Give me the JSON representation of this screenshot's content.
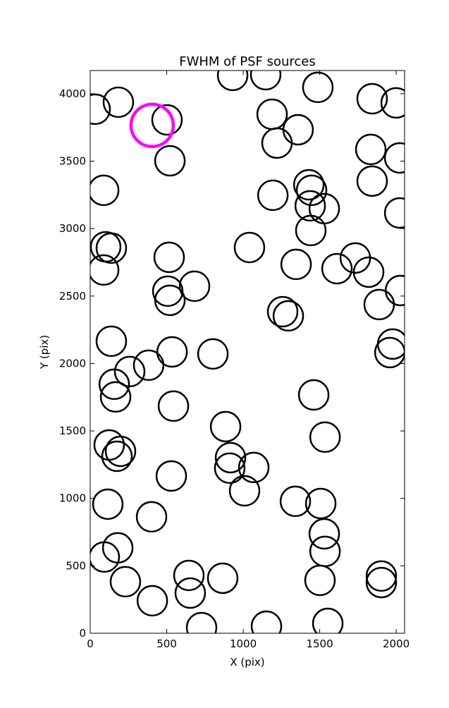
{
  "chart_data": {
    "type": "scatter",
    "title": "FWHM of PSF sources",
    "xlabel": "X (pix)",
    "ylabel": "Y (pix)",
    "xlim": [
      0,
      2055
    ],
    "ylim": [
      0,
      4172
    ],
    "xticks": [
      0,
      500,
      1000,
      1500,
      2000
    ],
    "yticks": [
      0,
      500,
      1000,
      1500,
      2000,
      2500,
      3000,
      3500,
      4000
    ],
    "series": [
      {
        "color": "#000000",
        "x": [
          32,
          184,
          502,
          521,
          931,
          1147,
          1488,
          1189,
          1359,
          1221,
          1843,
          2000,
          1834,
          2023,
          1843,
          88,
          1194,
          1429,
          1447,
          1438,
          1530,
          2023,
          1442,
          101,
          138,
          1041,
          516,
          88,
          1346,
          1613,
          1733,
          1820,
          507,
          682,
          521,
          2028,
          1889,
          1258,
          1295,
          138,
          1977,
          1959,
          535,
          802,
          258,
          382,
          157,
          166,
          1461,
          544,
          885,
          1535,
          124,
          198,
          175,
          917,
          912,
          1069,
          530,
          1009,
          115,
          1341,
          1507,
          401,
          1530,
          180,
          92,
          1535,
          645,
          866,
          1903,
          1903,
          230,
          1502,
          654,
          406,
          728,
          1152,
          1553
        ],
        "y": [
          3885,
          3937,
          3806,
          3503,
          4136,
          4141,
          4047,
          3848,
          3733,
          3634,
          3963,
          3932,
          3587,
          3524,
          3352,
          3284,
          3247,
          3325,
          3284,
          3169,
          3148,
          3116,
          2986,
          2865,
          2855,
          2860,
          2787,
          2693,
          2735,
          2703,
          2782,
          2677,
          2536,
          2573,
          2468,
          2541,
          2437,
          2384,
          2353,
          2165,
          2144,
          2081,
          2086,
          2071,
          1940,
          1987,
          1846,
          1752,
          1767,
          1684,
          1532,
          1454,
          1396,
          1349,
          1312,
          1302,
          1224,
          1229,
          1166,
          1056,
          957,
          978,
          962,
          863,
          737,
          633,
          565,
          607,
          429,
          408,
          424,
          376,
          382,
          392,
          298,
          241,
          42,
          52,
          73
        ]
      },
      {
        "color": "#ff00ff",
        "x": [
          405
        ],
        "y": [
          3765
        ]
      }
    ]
  }
}
